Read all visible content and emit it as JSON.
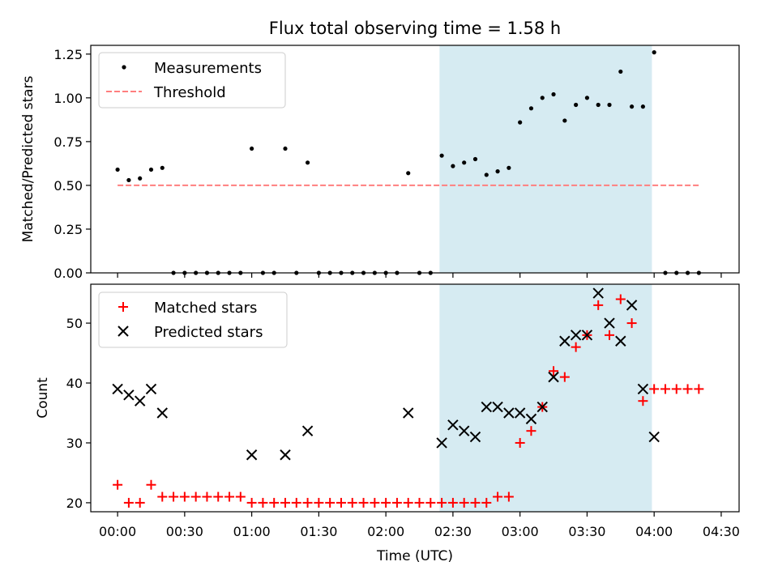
{
  "figure": {
    "title": "Flux total observing time = 1.58 h",
    "xlabel": "Time (UTC)",
    "xtick_labels": [
      "00:00",
      "00:30",
      "01:00",
      "01:30",
      "02:00",
      "02:30",
      "03:00",
      "03:30",
      "04:00",
      "04:30"
    ],
    "shaded_span_color": "#add8e6",
    "shaded_span": [
      "02:24",
      "03:59"
    ]
  },
  "chart_data": [
    {
      "type": "scatter",
      "panel": "top",
      "ylabel": "Matched/Predicted stars",
      "ylim": [
        0,
        1.3
      ],
      "yticks": [
        0,
        0.25,
        0.5,
        0.75,
        1.0,
        1.25
      ],
      "ytick_labels": [
        "0.00",
        "0.25",
        "0.50",
        "0.75",
        "1.00",
        "1.25"
      ],
      "legend_position": "top-left",
      "series": [
        {
          "name": "Measurements",
          "color": "#000000",
          "marker": "dot",
          "x": [
            "00:00",
            "00:05",
            "00:10",
            "00:15",
            "00:20",
            "00:25",
            "00:30",
            "00:35",
            "00:40",
            "00:45",
            "00:50",
            "00:55",
            "01:00",
            "01:05",
            "01:10",
            "01:15",
            "01:20",
            "01:25",
            "01:30",
            "01:35",
            "01:40",
            "01:45",
            "01:50",
            "01:55",
            "02:00",
            "02:05",
            "02:10",
            "02:15",
            "02:20",
            "02:25",
            "02:30",
            "02:35",
            "02:40",
            "02:45",
            "02:50",
            "02:55",
            "03:00",
            "03:05",
            "03:10",
            "03:15",
            "03:20",
            "03:25",
            "03:30",
            "03:35",
            "03:40",
            "03:45",
            "03:50",
            "03:55",
            "04:00",
            "04:05",
            "04:10",
            "04:15",
            "04:20"
          ],
          "y": [
            0.59,
            0.53,
            0.54,
            0.59,
            0.6,
            0.0,
            0.0,
            0.0,
            0.0,
            0.0,
            0.0,
            0.0,
            0.71,
            0.0,
            0.0,
            0.71,
            0.0,
            0.63,
            0.0,
            0.0,
            0.0,
            0.0,
            0.0,
            0.0,
            0.0,
            0.0,
            0.57,
            0.0,
            0.0,
            0.67,
            0.61,
            0.63,
            0.65,
            0.56,
            0.58,
            0.6,
            0.86,
            0.94,
            1.0,
            1.02,
            0.87,
            0.96,
            1.0,
            0.96,
            0.96,
            1.15,
            0.95,
            0.95,
            1.26,
            0.0,
            0.0,
            0.0,
            0.0
          ]
        },
        {
          "name": "Threshold",
          "color": "#ff7f7f",
          "style": "dashed",
          "x": [
            "00:00",
            "04:20"
          ],
          "y": [
            0.5,
            0.5
          ]
        }
      ]
    },
    {
      "type": "scatter",
      "panel": "bottom",
      "ylabel": "Count",
      "ylim": [
        18.5,
        56.5
      ],
      "yticks": [
        20,
        30,
        40,
        50
      ],
      "ytick_labels": [
        "20",
        "30",
        "40",
        "50"
      ],
      "legend_position": "top-left",
      "series": [
        {
          "name": "Matched stars",
          "color": "#ff0000",
          "marker": "plus",
          "x": [
            "00:00",
            "00:05",
            "00:10",
            "00:15",
            "00:20",
            "00:25",
            "00:30",
            "00:35",
            "00:40",
            "00:45",
            "00:50",
            "00:55",
            "01:00",
            "01:05",
            "01:10",
            "01:15",
            "01:20",
            "01:25",
            "01:30",
            "01:35",
            "01:40",
            "01:45",
            "01:50",
            "01:55",
            "02:00",
            "02:05",
            "02:10",
            "02:15",
            "02:20",
            "02:25",
            "02:30",
            "02:35",
            "02:40",
            "02:45",
            "02:50",
            "02:55",
            "03:00",
            "03:05",
            "03:10",
            "03:15",
            "03:20",
            "03:25",
            "03:30",
            "03:35",
            "03:40",
            "03:45",
            "03:50",
            "03:55",
            "04:00",
            "04:05",
            "04:10",
            "04:15",
            "04:20"
          ],
          "y": [
            23,
            20,
            20,
            23,
            21,
            21,
            21,
            21,
            21,
            21,
            21,
            21,
            20,
            20,
            20,
            20,
            20,
            20,
            20,
            20,
            20,
            20,
            20,
            20,
            20,
            20,
            20,
            20,
            20,
            20,
            20,
            20,
            20,
            20,
            21,
            21,
            30,
            32,
            36,
            42,
            41,
            46,
            48,
            53,
            48,
            54,
            50,
            37,
            39,
            39,
            39,
            39,
            39
          ]
        },
        {
          "name": "Predicted stars",
          "color": "#000000",
          "marker": "x",
          "x": [
            "00:00",
            "00:05",
            "00:10",
            "00:15",
            "00:20",
            "01:00",
            "01:15",
            "01:25",
            "02:10",
            "02:25",
            "02:30",
            "02:35",
            "02:40",
            "02:45",
            "02:50",
            "02:55",
            "03:00",
            "03:05",
            "03:10",
            "03:15",
            "03:20",
            "03:25",
            "03:30",
            "03:35",
            "03:40",
            "03:45",
            "03:50",
            "03:55",
            "04:00"
          ],
          "y": [
            39,
            38,
            37,
            39,
            35,
            28,
            28,
            32,
            35,
            30,
            33,
            32,
            31,
            36,
            36,
            35,
            35,
            34,
            36,
            41,
            47,
            48,
            48,
            55,
            50,
            47,
            53,
            39,
            31
          ]
        }
      ]
    }
  ]
}
